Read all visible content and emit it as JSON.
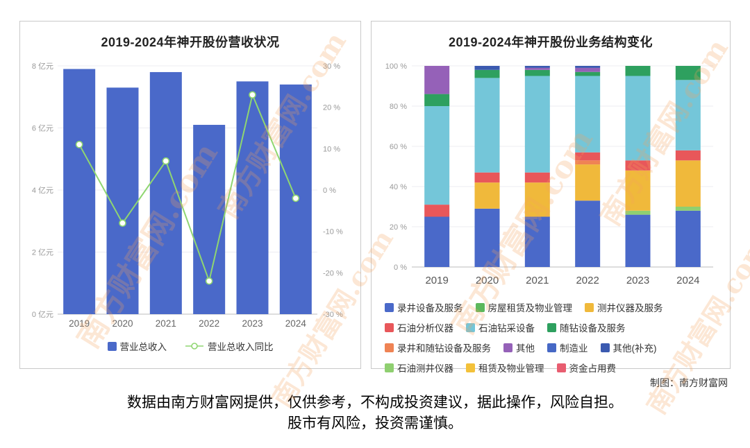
{
  "page": {
    "credit": "制图：南方财富网",
    "disclaimer_line1": "数据由南方财富网提供，仅供参考，不构成投资建议，据此操作，风险自担。",
    "disclaimer_line2": "股市有风险，投资需谨慎。",
    "watermark": "南方财富网.com"
  },
  "chart_data": [
    {
      "type": "bar+line",
      "title": "2019-2024年神开股份营收状况",
      "categories": [
        "2019",
        "2020",
        "2021",
        "2022",
        "2023",
        "2024"
      ],
      "bar_series": {
        "name": "营业总收入",
        "unit": "亿元",
        "color": "#4a69c9",
        "values": [
          7.9,
          7.3,
          7.8,
          6.1,
          7.5,
          7.4
        ]
      },
      "line_series": {
        "name": "营业总收入同比",
        "unit": "%",
        "color": "#8fd671",
        "values": [
          11,
          -8,
          7,
          -22,
          23,
          -2
        ]
      },
      "left_axis": {
        "min": 0,
        "max": 8,
        "step": 2,
        "suffix": " 亿元"
      },
      "right_axis": {
        "min": -30,
        "max": 30,
        "step": 10,
        "suffix": " %"
      },
      "grid": true,
      "legend_position": "bottom"
    },
    {
      "type": "stacked-bar",
      "title": "2019-2024年神开股份业务结构变化",
      "categories": [
        "2019",
        "2020",
        "2021",
        "2022",
        "2023",
        "2024"
      ],
      "y_axis": {
        "min": 0,
        "max": 100,
        "step": 20,
        "suffix": " %"
      },
      "series": [
        {
          "name": "录井设备及服务",
          "color": "#4a69c9",
          "values": [
            25,
            29,
            25,
            33,
            26,
            28
          ]
        },
        {
          "name": "石油测井仪器",
          "color": "#8fcf70",
          "values": [
            0,
            0,
            0,
            0,
            2,
            2
          ]
        },
        {
          "name": "测井仪器及服务",
          "color": "#f0b93b",
          "values": [
            0,
            13,
            17,
            18,
            20,
            23
          ]
        },
        {
          "name": "租赁及物业管理",
          "color": "#f3c13a",
          "values": [
            0,
            0,
            0,
            0,
            0,
            0
          ]
        },
        {
          "name": "录井和随钻设备及服务",
          "color": "#ef8354",
          "values": [
            0,
            0,
            0,
            2,
            0,
            0
          ]
        },
        {
          "name": "石油分析仪器",
          "color": "#e8575a",
          "values": [
            6,
            5,
            5,
            4,
            5,
            5
          ]
        },
        {
          "name": "资金占用费",
          "color": "#e85d70",
          "values": [
            0,
            0,
            0,
            0,
            0,
            0
          ]
        },
        {
          "name": "石油钻采设备",
          "color": "#74c6d9",
          "values": [
            49,
            47,
            48,
            38,
            42,
            35
          ]
        },
        {
          "name": "随钻设备及服务",
          "color": "#2ea05f",
          "values": [
            6,
            4,
            3,
            2,
            5,
            7
          ]
        },
        {
          "name": "房屋租赁及物业管理",
          "color": "#5cb85c",
          "values": [
            0,
            0,
            0,
            0,
            0,
            0
          ]
        },
        {
          "name": "其他",
          "color": "#9561b8",
          "values": [
            14,
            0,
            1,
            2,
            0,
            0
          ]
        },
        {
          "name": "制造业",
          "color": "#4668c5",
          "values": [
            0,
            0,
            0,
            0,
            0,
            0
          ]
        },
        {
          "name": "其他(补充)",
          "color": "#3b5ab0",
          "values": [
            0,
            2,
            1,
            1,
            0,
            0
          ]
        }
      ],
      "legend_order": [
        "录井设备及服务",
        "房屋租赁及物业管理",
        "测井仪器及服务",
        "石油分析仪器",
        "石油钻采设备",
        "随钻设备及服务",
        "录井和随钻设备及服务",
        "其他",
        "制造业",
        "其他(补充)",
        "石油测井仪器",
        "租赁及物业管理",
        "资金占用费"
      ],
      "legend_position": "bottom"
    }
  ]
}
